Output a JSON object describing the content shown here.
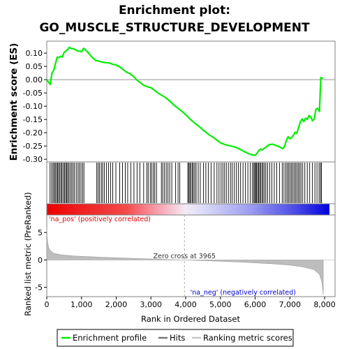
{
  "chart_data": {
    "type": "line",
    "title_line1": "Enrichment plot:",
    "title_line2": "GO_MUSCLE_STRUCTURE_DEVELOPMENT",
    "es_panel": {
      "ylabel": "Enrichment score (ES)",
      "ylim": [
        -0.31,
        0.145
      ],
      "yticks": [
        0.1,
        0.05,
        0.0,
        -0.05,
        -0.1,
        -0.15,
        -0.2,
        -0.25,
        -0.3
      ],
      "ytick_labels": [
        "0.10",
        "0.05",
        "0.00",
        "-0.05",
        "-0.10",
        "-0.15",
        "-0.20",
        "-0.25",
        "-0.30"
      ],
      "series_name": "Enrichment profile",
      "line_color": "#00ee00",
      "x": [
        0,
        100,
        150,
        200,
        260,
        300,
        350,
        400,
        450,
        500,
        550,
        600,
        650,
        700,
        800,
        900,
        950,
        1000,
        1060,
        1150,
        1300,
        1400,
        1500,
        1600,
        1700,
        1800,
        1900,
        2000,
        2100,
        2200,
        2300,
        2400,
        2500,
        2600,
        2700,
        2800,
        2900,
        3000,
        3100,
        3200,
        3300,
        3400,
        3500,
        3600,
        3700,
        3800,
        3900,
        4000,
        4100,
        4200,
        4300,
        4400,
        4500,
        4600,
        4700,
        4800,
        4900,
        5000,
        5100,
        5200,
        5300,
        5400,
        5500,
        5600,
        5700,
        5800,
        5900,
        6000,
        6050,
        6100,
        6150,
        6200,
        6300,
        6400,
        6500,
        6600,
        6700,
        6800,
        6850,
        6900,
        6950,
        7000,
        7050,
        7100,
        7150,
        7200,
        7250,
        7300,
        7350,
        7400,
        7450,
        7500,
        7550,
        7600,
        7650,
        7700,
        7750,
        7800,
        7850,
        7870,
        7890,
        7910,
        7950
      ],
      "y": [
        0.0,
        -0.018,
        0.025,
        0.035,
        0.065,
        0.085,
        0.083,
        0.088,
        0.085,
        0.103,
        0.108,
        0.113,
        0.122,
        0.118,
        0.115,
        0.107,
        0.108,
        0.105,
        0.118,
        0.108,
        0.085,
        0.073,
        0.07,
        0.066,
        0.064,
        0.063,
        0.058,
        0.055,
        0.048,
        0.038,
        0.028,
        0.022,
        0.012,
        -0.002,
        -0.012,
        -0.022,
        -0.027,
        -0.03,
        -0.04,
        -0.05,
        -0.058,
        -0.066,
        -0.076,
        -0.088,
        -0.1,
        -0.11,
        -0.12,
        -0.132,
        -0.145,
        -0.157,
        -0.168,
        -0.178,
        -0.19,
        -0.2,
        -0.21,
        -0.218,
        -0.228,
        -0.238,
        -0.243,
        -0.247,
        -0.25,
        -0.253,
        -0.258,
        -0.265,
        -0.272,
        -0.278,
        -0.283,
        -0.285,
        -0.278,
        -0.268,
        -0.262,
        -0.265,
        -0.255,
        -0.245,
        -0.243,
        -0.248,
        -0.253,
        -0.26,
        -0.25,
        -0.228,
        -0.215,
        -0.223,
        -0.218,
        -0.21,
        -0.198,
        -0.202,
        -0.18,
        -0.16,
        -0.148,
        -0.158,
        -0.145,
        -0.15,
        -0.135,
        -0.14,
        -0.155,
        -0.148,
        -0.112,
        -0.108,
        -0.12,
        -0.06,
        0.008,
        0.007,
        0.004
      ]
    },
    "hits_panel": {
      "hit_positions": [
        95,
        140,
        180,
        215,
        245,
        280,
        310,
        340,
        375,
        410,
        440,
        480,
        510,
        545,
        575,
        605,
        640,
        680,
        720,
        760,
        800,
        850,
        900,
        940,
        985,
        1030,
        1070,
        1440,
        1480,
        1520,
        1570,
        1610,
        1660,
        1720,
        1780,
        1840,
        1900,
        1990,
        2100,
        2180,
        2260,
        2330,
        2420,
        2510,
        2600,
        2680,
        2790,
        2880,
        2920,
        2980,
        3020,
        3070,
        3110,
        3160,
        3300,
        3340,
        3390,
        3440,
        3490,
        3540,
        3600,
        3710,
        3780,
        3830,
        4060,
        4090,
        4120,
        4150,
        4190,
        4220,
        4260,
        4300,
        4360,
        4420,
        4510,
        4580,
        4650,
        4730,
        4820,
        4900,
        4960,
        5020,
        5070,
        5120,
        5170,
        5230,
        5290,
        5340,
        5400,
        5460,
        5520,
        5580,
        5650,
        5720,
        5790,
        5860,
        5920,
        5960,
        5990,
        6010,
        6040,
        6070,
        6100,
        6130,
        6160,
        6200,
        6230,
        6270,
        6310,
        6360,
        6420,
        6480,
        6550,
        6620,
        6700,
        6780,
        6830,
        6880,
        6920,
        6960,
        7000,
        7040,
        7080,
        7120,
        7160,
        7200,
        7240,
        7280,
        7320,
        7370,
        7430,
        7500,
        7570,
        7650,
        7720,
        7780,
        7840,
        7880,
        7910
      ]
    },
    "rank_panel": {
      "ylabel": "Ranked list metric (PreRanked)",
      "xlabel": "Rank in Ordered Dataset",
      "ylim": [
        -6.7,
        8.2
      ],
      "yticks": [
        5,
        0,
        -5
      ],
      "ytick_labels": [
        "5",
        "0",
        "-5"
      ],
      "xlim": [
        0,
        8300
      ],
      "xticks": [
        0,
        1000,
        2000,
        3000,
        4000,
        5000,
        6000,
        7000,
        8000
      ],
      "xtick_labels": [
        "0",
        "1,000",
        "2,000",
        "3,000",
        "4,000",
        "5,000",
        "6,000",
        "7,000",
        "8,000"
      ],
      "zero_cross_rank": 3965,
      "zero_cross_label": "Zero cross at 3965",
      "pos_label": "'na_pos' (positively correlated)",
      "neg_label": "'na_neg' (negatively correlated)",
      "n_genes": 7960,
      "metric_points": [
        [
          0,
          5.8
        ],
        [
          10,
          4.2
        ],
        [
          30,
          3.0
        ],
        [
          60,
          2.2
        ],
        [
          100,
          1.7
        ],
        [
          200,
          1.2
        ],
        [
          400,
          0.95
        ],
        [
          800,
          0.72
        ],
        [
          1500,
          0.5
        ],
        [
          2500,
          0.28
        ],
        [
          3500,
          0.08
        ],
        [
          3965,
          0.0
        ],
        [
          4500,
          -0.12
        ],
        [
          5500,
          -0.38
        ],
        [
          6500,
          -0.7
        ],
        [
          7000,
          -0.95
        ],
        [
          7400,
          -1.3
        ],
        [
          7700,
          -1.8
        ],
        [
          7850,
          -2.6
        ],
        [
          7920,
          -4.0
        ],
        [
          7950,
          -5.6
        ],
        [
          7960,
          -6.4
        ]
      ]
    },
    "legend": {
      "items": [
        {
          "label": "Enrichment profile",
          "color": "#00ee00"
        },
        {
          "label": "Hits",
          "color": "#777777"
        },
        {
          "label": "Ranking metric scores",
          "color": "#c8c8c8"
        }
      ]
    },
    "colors": {
      "es_line": "#00ee00",
      "hit": "#000000",
      "zero_line": "#909090",
      "metric_fill": "#bdbdbd",
      "pos_label": "#dd0000",
      "neg_label": "#0000cc",
      "frame": "#808080"
    }
  }
}
